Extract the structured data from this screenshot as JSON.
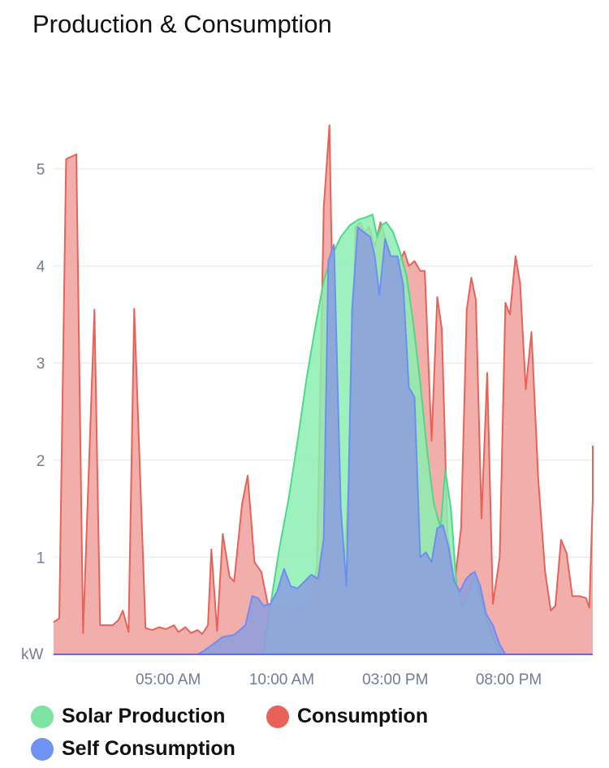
{
  "title": "Production & Consumption",
  "chart_data": {
    "type": "area",
    "ylabel": "kW",
    "ylim": [
      0,
      5.5
    ],
    "y_ticks": [
      1,
      2,
      3,
      4,
      5
    ],
    "x_range_hours": [
      -0.05,
      23.7
    ],
    "x_ticks": [
      {
        "hour": 5,
        "label": "05:00 AM"
      },
      {
        "hour": 10,
        "label": "10:00 AM"
      },
      {
        "hour": 15,
        "label": "03:00 PM"
      },
      {
        "hour": 20,
        "label": "08:00 PM"
      }
    ],
    "grid": true,
    "legend_position": "bottom",
    "series": [
      {
        "name": "Consumption",
        "color": "#e8625a",
        "fill": "#f0a09b",
        "points": [
          [
            -0.05,
            0.33
          ],
          [
            0.2,
            0.37
          ],
          [
            0.5,
            5.1
          ],
          [
            0.95,
            5.15
          ],
          [
            1.25,
            0.22
          ],
          [
            1.75,
            3.55
          ],
          [
            2.0,
            0.3
          ],
          [
            2.55,
            0.3
          ],
          [
            2.8,
            0.35
          ],
          [
            3.0,
            0.45
          ],
          [
            3.25,
            0.23
          ],
          [
            3.5,
            3.56
          ],
          [
            4.0,
            0.27
          ],
          [
            4.3,
            0.25
          ],
          [
            4.6,
            0.28
          ],
          [
            4.9,
            0.26
          ],
          [
            5.25,
            0.3
          ],
          [
            5.45,
            0.23
          ],
          [
            5.75,
            0.28
          ],
          [
            6.0,
            0.22
          ],
          [
            6.3,
            0.25
          ],
          [
            6.5,
            0.21
          ],
          [
            6.75,
            0.3
          ],
          [
            6.9,
            1.08
          ],
          [
            7.15,
            0.24
          ],
          [
            7.4,
            1.24
          ],
          [
            7.7,
            0.8
          ],
          [
            7.9,
            0.75
          ],
          [
            8.25,
            1.55
          ],
          [
            8.5,
            1.84
          ],
          [
            8.8,
            0.95
          ],
          [
            9.1,
            0.85
          ],
          [
            9.4,
            0.5
          ],
          [
            9.75,
            0.5
          ],
          [
            10.1,
            0.5
          ],
          [
            10.4,
            0.4
          ],
          [
            10.7,
            0.5
          ],
          [
            11.0,
            0.45
          ],
          [
            11.3,
            0.6
          ],
          [
            11.55,
            0.9
          ],
          [
            11.85,
            4.6
          ],
          [
            12.1,
            5.45
          ],
          [
            12.4,
            1.5
          ],
          [
            12.7,
            0.7
          ],
          [
            13.0,
            2.0
          ],
          [
            13.25,
            4.4
          ],
          [
            13.45,
            4.45
          ],
          [
            13.65,
            4.35
          ],
          [
            13.85,
            4.4
          ],
          [
            14.1,
            4.2
          ],
          [
            14.35,
            4.45
          ],
          [
            14.55,
            4.3
          ],
          [
            14.75,
            4.05
          ],
          [
            15.0,
            4.0
          ],
          [
            15.2,
            4.05
          ],
          [
            15.4,
            4.15
          ],
          [
            15.6,
            4.0
          ],
          [
            15.85,
            4.05
          ],
          [
            16.1,
            3.95
          ],
          [
            16.3,
            3.95
          ],
          [
            16.6,
            2.2
          ],
          [
            16.85,
            3.68
          ],
          [
            17.05,
            3.35
          ],
          [
            17.3,
            1.25
          ],
          [
            17.6,
            0.7
          ],
          [
            17.9,
            1.3
          ],
          [
            18.15,
            3.55
          ],
          [
            18.35,
            3.88
          ],
          [
            18.55,
            3.65
          ],
          [
            18.8,
            1.4
          ],
          [
            19.05,
            2.9
          ],
          [
            19.3,
            0.52
          ],
          [
            19.6,
            1.0
          ],
          [
            19.85,
            3.62
          ],
          [
            20.05,
            3.5
          ],
          [
            20.3,
            4.1
          ],
          [
            20.5,
            3.82
          ],
          [
            20.75,
            2.73
          ],
          [
            21.0,
            3.32
          ],
          [
            21.3,
            1.8
          ],
          [
            21.6,
            0.85
          ],
          [
            21.85,
            0.45
          ],
          [
            22.05,
            0.5
          ],
          [
            22.3,
            1.18
          ],
          [
            22.55,
            1.04
          ],
          [
            22.8,
            0.6
          ],
          [
            23.1,
            0.6
          ],
          [
            23.4,
            0.58
          ],
          [
            23.55,
            0.48
          ],
          [
            23.75,
            1.6
          ],
          [
            23.9,
            2.15
          ]
        ]
      },
      {
        "name": "Solar Production",
        "color": "#4fd88a",
        "fill": "#8ceeb0",
        "points": [
          [
            9.2,
            0.0
          ],
          [
            9.5,
            0.5
          ],
          [
            9.9,
            1.1
          ],
          [
            10.3,
            1.6
          ],
          [
            10.7,
            2.2
          ],
          [
            11.1,
            2.85
          ],
          [
            11.5,
            3.4
          ],
          [
            11.85,
            3.85
          ],
          [
            12.2,
            4.1
          ],
          [
            12.6,
            4.3
          ],
          [
            13.0,
            4.42
          ],
          [
            13.4,
            4.48
          ],
          [
            13.7,
            4.5
          ],
          [
            14.0,
            4.53
          ],
          [
            14.2,
            4.3
          ],
          [
            14.4,
            4.42
          ],
          [
            14.6,
            4.45
          ],
          [
            14.9,
            4.35
          ],
          [
            15.2,
            4.15
          ],
          [
            15.5,
            3.9
          ],
          [
            15.8,
            3.4
          ],
          [
            16.1,
            2.8
          ],
          [
            16.4,
            2.1
          ],
          [
            16.7,
            1.55
          ],
          [
            17.0,
            1.3
          ],
          [
            17.2,
            1.9
          ],
          [
            17.45,
            1.5
          ],
          [
            17.7,
            0.7
          ],
          [
            17.95,
            0.5
          ],
          [
            18.2,
            0.6
          ],
          [
            18.5,
            0.8
          ],
          [
            18.8,
            0.55
          ],
          [
            19.1,
            0.3
          ],
          [
            19.4,
            0.12
          ],
          [
            19.7,
            0.0
          ]
        ]
      },
      {
        "name": "Self Consumption",
        "color": "#6d8ef5",
        "fill": "#8c9edf",
        "points": [
          [
            6.3,
            0.0
          ],
          [
            6.6,
            0.04
          ],
          [
            6.95,
            0.1
          ],
          [
            7.4,
            0.18
          ],
          [
            7.9,
            0.2
          ],
          [
            8.4,
            0.3
          ],
          [
            8.7,
            0.6
          ],
          [
            8.95,
            0.58
          ],
          [
            9.2,
            0.5
          ],
          [
            9.5,
            0.52
          ],
          [
            9.8,
            0.65
          ],
          [
            10.1,
            0.88
          ],
          [
            10.4,
            0.7
          ],
          [
            10.7,
            0.68
          ],
          [
            11.0,
            0.75
          ],
          [
            11.3,
            0.82
          ],
          [
            11.6,
            0.78
          ],
          [
            11.85,
            1.2
          ],
          [
            12.05,
            4.05
          ],
          [
            12.3,
            4.22
          ],
          [
            12.6,
            1.5
          ],
          [
            12.85,
            0.7
          ],
          [
            13.1,
            3.55
          ],
          [
            13.35,
            4.4
          ],
          [
            13.6,
            4.35
          ],
          [
            13.9,
            4.3
          ],
          [
            14.1,
            4.1
          ],
          [
            14.3,
            3.7
          ],
          [
            14.55,
            4.28
          ],
          [
            14.8,
            4.1
          ],
          [
            15.1,
            4.1
          ],
          [
            15.35,
            3.8
          ],
          [
            15.6,
            2.75
          ],
          [
            15.85,
            2.65
          ],
          [
            16.1,
            1.0
          ],
          [
            16.35,
            1.05
          ],
          [
            16.6,
            0.95
          ],
          [
            16.85,
            1.3
          ],
          [
            17.1,
            1.33
          ],
          [
            17.35,
            1.1
          ],
          [
            17.6,
            0.75
          ],
          [
            17.85,
            0.65
          ],
          [
            18.1,
            0.77
          ],
          [
            18.3,
            0.82
          ],
          [
            18.5,
            0.85
          ],
          [
            18.75,
            0.7
          ],
          [
            19.0,
            0.42
          ],
          [
            19.3,
            0.3
          ],
          [
            19.6,
            0.1
          ],
          [
            19.85,
            0.0
          ]
        ]
      }
    ]
  },
  "legend": [
    {
      "label": "Solar Production",
      "color": "#7ee2a3"
    },
    {
      "label": "Consumption",
      "color": "#e8625a"
    },
    {
      "label": "Self Consumption",
      "color": "#6f93f3"
    }
  ]
}
